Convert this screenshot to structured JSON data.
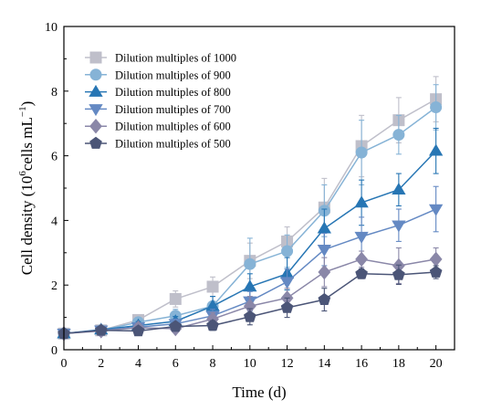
{
  "chart_data": {
    "type": "line",
    "xlabel": "Time (d)",
    "ylabel_main": "Cell density (10",
    "ylabel_sup": "6",
    "ylabel_mid": "cells mL",
    "ylabel_sup2": "−1",
    "ylabel_end": ")",
    "xlim": [
      0,
      21
    ],
    "ylim": [
      0,
      10
    ],
    "x_ticks": [
      "0",
      "2",
      "4",
      "6",
      "8",
      "10",
      "12",
      "14",
      "16",
      "18",
      "20"
    ],
    "y_ticks": [
      "0",
      "2",
      "4",
      "6",
      "8",
      "10"
    ],
    "x": [
      0,
      2,
      4,
      6,
      8,
      10,
      12,
      14,
      16,
      18,
      20
    ],
    "grid": false,
    "legend_position": "top-left",
    "series": [
      {
        "name": "Dilution multiples of 1000",
        "color": "#bfbfca",
        "marker": "square",
        "values": [
          0.5,
          0.6,
          0.92,
          1.57,
          1.95,
          2.75,
          3.35,
          4.4,
          6.3,
          7.1,
          7.75
        ],
        "errors": [
          0.05,
          0.08,
          0.12,
          0.25,
          0.3,
          0.55,
          0.45,
          0.9,
          0.95,
          0.7,
          0.7
        ]
      },
      {
        "name": "Dilution multiples of 900",
        "color": "#86b3d6",
        "marker": "circle",
        "values": [
          0.5,
          0.6,
          0.85,
          1.05,
          1.35,
          2.65,
          3.05,
          4.3,
          6.1,
          6.65,
          7.5
        ],
        "errors": [
          0.05,
          0.08,
          0.15,
          0.2,
          0.3,
          0.8,
          0.5,
          0.8,
          1.0,
          0.6,
          0.7
        ]
      },
      {
        "name": "Dilution multiples of 800",
        "color": "#2776b4",
        "marker": "triangle-up",
        "values": [
          0.5,
          0.62,
          0.75,
          0.88,
          1.35,
          1.95,
          2.35,
          3.75,
          4.55,
          4.95,
          6.15
        ],
        "errors": [
          0.05,
          0.08,
          0.12,
          0.15,
          0.3,
          0.4,
          0.5,
          0.6,
          0.7,
          0.5,
          0.7
        ]
      },
      {
        "name": "Dilution multiples of 700",
        "color": "#6489c3",
        "marker": "triangle-down",
        "values": [
          0.5,
          0.6,
          0.7,
          0.8,
          1.05,
          1.5,
          2.1,
          3.1,
          3.5,
          3.85,
          4.35
        ],
        "errors": [
          0.05,
          0.08,
          0.1,
          0.15,
          0.2,
          0.3,
          0.4,
          0.5,
          0.6,
          0.5,
          0.7
        ]
      },
      {
        "name": "Dilution multiples of 600",
        "color": "#8a87a8",
        "marker": "diamond",
        "values": [
          0.5,
          0.58,
          0.68,
          0.65,
          0.95,
          1.35,
          1.6,
          2.4,
          2.8,
          2.6,
          2.8
        ],
        "errors": [
          0.05,
          0.08,
          0.1,
          0.12,
          0.2,
          0.3,
          0.3,
          0.45,
          0.25,
          0.55,
          0.35
        ]
      },
      {
        "name": "Dilution multiples of 500",
        "color": "#4b5577",
        "marker": "pentagon",
        "values": [
          0.5,
          0.6,
          0.58,
          0.72,
          0.75,
          1.02,
          1.3,
          1.55,
          2.35,
          2.32,
          2.4
        ],
        "errors": [
          0.05,
          0.08,
          0.08,
          0.1,
          0.15,
          0.25,
          0.3,
          0.35,
          0.15,
          0.3,
          0.2
        ]
      }
    ]
  }
}
